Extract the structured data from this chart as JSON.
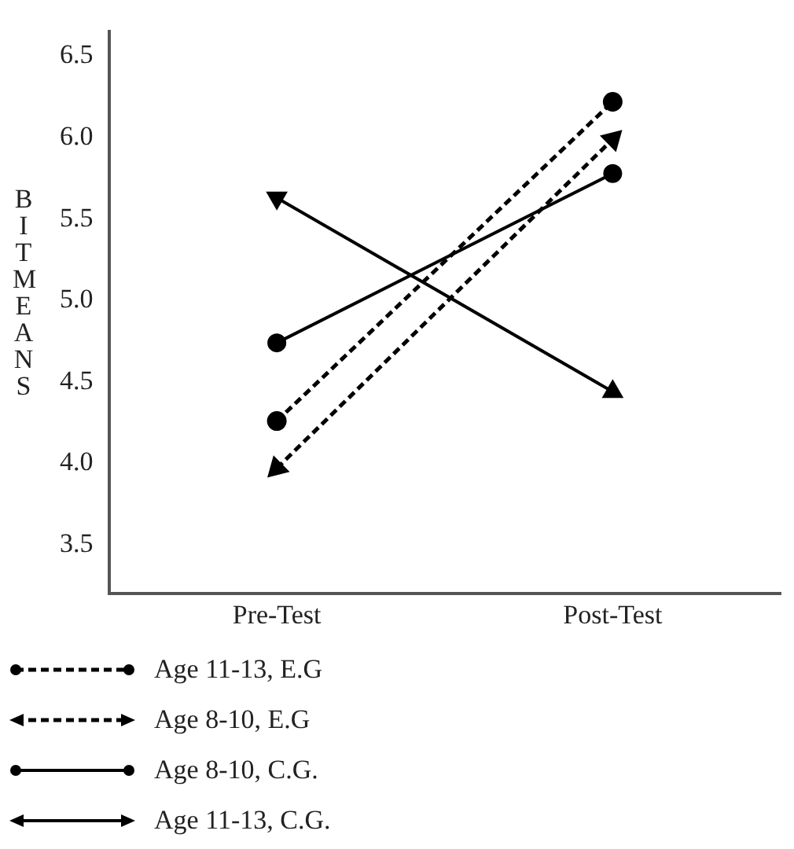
{
  "chart_data": {
    "type": "line",
    "ylabel": "BIT MEANS",
    "categories": [
      "Pre-Test",
      "Post-Test"
    ],
    "ylim": [
      3.2,
      6.65
    ],
    "yticks": [
      {
        "value": 3.5,
        "label": "3.5"
      },
      {
        "value": 4,
        "label": "4.0"
      },
      {
        "value": 4.5,
        "label": "4.5"
      },
      {
        "value": 5,
        "label": "5.0"
      },
      {
        "value": 5.5,
        "label": "5.5"
      },
      {
        "value": 6,
        "label": "6.0"
      },
      {
        "value": 6.5,
        "label": "6.5"
      }
    ],
    "grid": false,
    "legend": "bottom left",
    "series": [
      {
        "name": "Age 11-13, E.G",
        "color": "#000000",
        "values": [
          4.26,
          6.22
        ],
        "marker": "circle",
        "line_style": "dashed"
      },
      {
        "name": "Age 8-10, E.G",
        "color": "#000000",
        "values": [
          3.97,
          5.99
        ],
        "marker": "triangle",
        "line_style": "dashed"
      },
      {
        "name": "Age 8-10, C.G.",
        "color": "#000000",
        "values": [
          4.74,
          5.78
        ],
        "marker": "circle",
        "line_style": "solid"
      },
      {
        "name": "Age 11-13, C.G.",
        "color": "#000000",
        "values": [
          5.63,
          4.44
        ],
        "marker": "triangle",
        "line_style": "solid"
      }
    ]
  }
}
